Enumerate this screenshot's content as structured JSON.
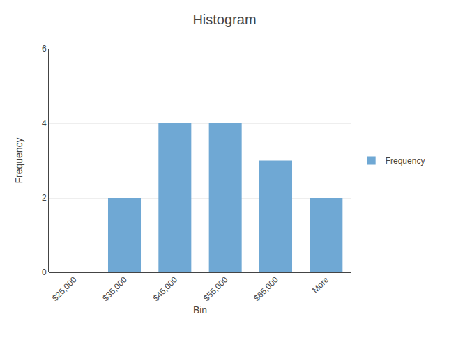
{
  "chart_data": {
    "type": "bar",
    "title": "Histogram",
    "xlabel": "Bin",
    "ylabel": "Frequency",
    "categories": [
      "$25,000",
      "$35,000",
      "$45,000",
      "$55,000",
      "$65,000",
      "More"
    ],
    "series": [
      {
        "name": "Frequency",
        "color": "#6fa8d4",
        "values": [
          0,
          2,
          4,
          4,
          3,
          2
        ]
      }
    ],
    "ylim": [
      0,
      6
    ],
    "yticks": [
      0,
      2,
      4,
      6
    ],
    "grid": true,
    "legend": "right"
  }
}
